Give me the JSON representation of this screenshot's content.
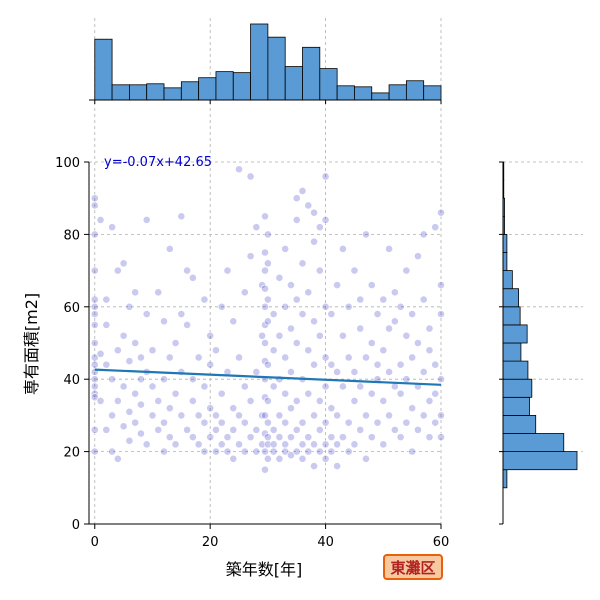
{
  "chart_data": {
    "type": "scatter",
    "xlabel": "築年数[年]",
    "ylabel": "専有面積[m2]",
    "xlim": [
      -1,
      60
    ],
    "ylim": [
      0,
      100
    ],
    "xticks": [
      0,
      20,
      40,
      60
    ],
    "yticks": [
      0,
      20,
      40,
      60,
      80,
      100
    ],
    "grid": true,
    "regression": {
      "slope": -0.07,
      "intercept": 42.65,
      "label": "y=-0.07x+42.65",
      "color": "#1f77b4"
    },
    "badge": "東灘区",
    "point_color": "#4040c8",
    "hist_color": "#5b9bd5",
    "x_hist": {
      "bins": [
        0,
        3,
        6,
        9,
        12,
        15,
        18,
        21,
        24,
        27,
        30,
        33,
        36,
        39,
        42,
        45,
        48,
        51,
        54,
        57,
        60
      ],
      "counts": [
        60,
        15,
        15,
        16,
        12,
        18,
        22,
        28,
        27,
        75,
        62,
        33,
        52,
        31,
        14,
        13,
        7,
        15,
        19,
        14
      ]
    },
    "y_hist": {
      "bins": [
        10,
        15,
        20,
        25,
        30,
        35,
        40,
        45,
        50,
        55,
        60,
        65,
        70,
        75,
        80,
        85,
        90,
        95,
        100
      ],
      "counts": [
        5,
        95,
        78,
        42,
        34,
        37,
        32,
        23,
        31,
        22,
        20,
        12,
        5,
        5,
        2,
        2,
        1,
        1
      ]
    },
    "points": [
      [
        0,
        90
      ],
      [
        0,
        88
      ],
      [
        0,
        60
      ],
      [
        0,
        55
      ],
      [
        0,
        50
      ],
      [
        0,
        46
      ],
      [
        0,
        42
      ],
      [
        0,
        40
      ],
      [
        0,
        38
      ],
      [
        0,
        36
      ],
      [
        0,
        35
      ],
      [
        0,
        26
      ],
      [
        0,
        20
      ],
      [
        0,
        80
      ],
      [
        0,
        70
      ],
      [
        0,
        58
      ],
      [
        0,
        62
      ],
      [
        0,
        44
      ],
      [
        1,
        34
      ],
      [
        1,
        47
      ],
      [
        1,
        84
      ],
      [
        2,
        26
      ],
      [
        2,
        44
      ],
      [
        2,
        55
      ],
      [
        2,
        62
      ],
      [
        3,
        40
      ],
      [
        3,
        30
      ],
      [
        3,
        20
      ],
      [
        3,
        82
      ],
      [
        4,
        48
      ],
      [
        4,
        34
      ],
      [
        4,
        18
      ],
      [
        4,
        70
      ],
      [
        5,
        38
      ],
      [
        5,
        52
      ],
      [
        5,
        27
      ],
      [
        5,
        72
      ],
      [
        6,
        60
      ],
      [
        6,
        45
      ],
      [
        6,
        31
      ],
      [
        6,
        23
      ],
      [
        7,
        50
      ],
      [
        7,
        36
      ],
      [
        7,
        28
      ],
      [
        7,
        64
      ],
      [
        8,
        46
      ],
      [
        8,
        40
      ],
      [
        8,
        33
      ],
      [
        8,
        25
      ],
      [
        9,
        58
      ],
      [
        9,
        42
      ],
      [
        9,
        22
      ],
      [
        9,
        84
      ],
      [
        10,
        38
      ],
      [
        10,
        30
      ],
      [
        10,
        48
      ],
      [
        11,
        26
      ],
      [
        11,
        64
      ],
      [
        11,
        34
      ],
      [
        12,
        56
      ],
      [
        12,
        40
      ],
      [
        12,
        28
      ],
      [
        12,
        20
      ],
      [
        13,
        46
      ],
      [
        13,
        32
      ],
      [
        13,
        24
      ],
      [
        13,
        76
      ],
      [
        14,
        50
      ],
      [
        14,
        36
      ],
      [
        14,
        22
      ],
      [
        15,
        42
      ],
      [
        15,
        30
      ],
      [
        15,
        85
      ],
      [
        15,
        58
      ],
      [
        16,
        26
      ],
      [
        16,
        55
      ],
      [
        16,
        70
      ],
      [
        17,
        40
      ],
      [
        17,
        34
      ],
      [
        17,
        24
      ],
      [
        17,
        68
      ],
      [
        18,
        30
      ],
      [
        18,
        22
      ],
      [
        18,
        46
      ],
      [
        19,
        28
      ],
      [
        19,
        20
      ],
      [
        19,
        38
      ],
      [
        19,
        62
      ],
      [
        20,
        24
      ],
      [
        20,
        32
      ],
      [
        20,
        44
      ],
      [
        20,
        52
      ],
      [
        21,
        20
      ],
      [
        21,
        26
      ],
      [
        21,
        30
      ],
      [
        21,
        48
      ],
      [
        22,
        22
      ],
      [
        22,
        28
      ],
      [
        22,
        36
      ],
      [
        22,
        60
      ],
      [
        23,
        20
      ],
      [
        23,
        24
      ],
      [
        23,
        42
      ],
      [
        23,
        70
      ],
      [
        24,
        18
      ],
      [
        24,
        26
      ],
      [
        24,
        32
      ],
      [
        24,
        56
      ],
      [
        25,
        22
      ],
      [
        25,
        30
      ],
      [
        25,
        46
      ],
      [
        25,
        98
      ],
      [
        26,
        20
      ],
      [
        26,
        28
      ],
      [
        26,
        38
      ],
      [
        26,
        64
      ],
      [
        27,
        24
      ],
      [
        27,
        34
      ],
      [
        27,
        74
      ],
      [
        27,
        96
      ],
      [
        28,
        20
      ],
      [
        28,
        26
      ],
      [
        28,
        42
      ],
      [
        28,
        82
      ],
      [
        29,
        22
      ],
      [
        29,
        30
      ],
      [
        29,
        52
      ],
      [
        29,
        66
      ],
      [
        29.5,
        15
      ],
      [
        29.5,
        20
      ],
      [
        29.5,
        25
      ],
      [
        29.5,
        30
      ],
      [
        29.5,
        35
      ],
      [
        29.5,
        40
      ],
      [
        29.5,
        45
      ],
      [
        29.5,
        50
      ],
      [
        29.5,
        55
      ],
      [
        29.5,
        60
      ],
      [
        29.5,
        65
      ],
      [
        29.5,
        70
      ],
      [
        29.5,
        75
      ],
      [
        29.5,
        85
      ],
      [
        30,
        18
      ],
      [
        30,
        22
      ],
      [
        30,
        24
      ],
      [
        30,
        28
      ],
      [
        30,
        34
      ],
      [
        30,
        44
      ],
      [
        30,
        56
      ],
      [
        30,
        62
      ],
      [
        30,
        72
      ],
      [
        30,
        80
      ],
      [
        31,
        20
      ],
      [
        31,
        22
      ],
      [
        31,
        26
      ],
      [
        31,
        38
      ],
      [
        31,
        48
      ],
      [
        31,
        58
      ],
      [
        32,
        18
      ],
      [
        32,
        24
      ],
      [
        32,
        30
      ],
      [
        32,
        40
      ],
      [
        32,
        52
      ],
      [
        32,
        68
      ],
      [
        33,
        20
      ],
      [
        33,
        22
      ],
      [
        33,
        28
      ],
      [
        33,
        36
      ],
      [
        33,
        46
      ],
      [
        33,
        60
      ],
      [
        33,
        76
      ],
      [
        34,
        19
      ],
      [
        34,
        24
      ],
      [
        34,
        32
      ],
      [
        34,
        42
      ],
      [
        34,
        54
      ],
      [
        34,
        66
      ],
      [
        35,
        20
      ],
      [
        35,
        26
      ],
      [
        35,
        34
      ],
      [
        35,
        50
      ],
      [
        35,
        62
      ],
      [
        35,
        84
      ],
      [
        35,
        90
      ],
      [
        36,
        18
      ],
      [
        36,
        22
      ],
      [
        36,
        28
      ],
      [
        36,
        40
      ],
      [
        36,
        58
      ],
      [
        36,
        72
      ],
      [
        36,
        92
      ],
      [
        37,
        20
      ],
      [
        37,
        24
      ],
      [
        37,
        36
      ],
      [
        37,
        48
      ],
      [
        37,
        64
      ],
      [
        37,
        88
      ],
      [
        38,
        16
      ],
      [
        38,
        22
      ],
      [
        38,
        30
      ],
      [
        38,
        44
      ],
      [
        38,
        56
      ],
      [
        38,
        78
      ],
      [
        38,
        86
      ],
      [
        39,
        20
      ],
      [
        39,
        26
      ],
      [
        39,
        34
      ],
      [
        39,
        52
      ],
      [
        39,
        70
      ],
      [
        39,
        82
      ],
      [
        40,
        18
      ],
      [
        40,
        22
      ],
      [
        40,
        28
      ],
      [
        40,
        38
      ],
      [
        40,
        46
      ],
      [
        40,
        60
      ],
      [
        40,
        84
      ],
      [
        40,
        96
      ],
      [
        41,
        20
      ],
      [
        41,
        24
      ],
      [
        41,
        32
      ],
      [
        41,
        44
      ],
      [
        41,
        58
      ],
      [
        42,
        16
      ],
      [
        42,
        22
      ],
      [
        42,
        30
      ],
      [
        42,
        42
      ],
      [
        42,
        66
      ],
      [
        43,
        24
      ],
      [
        43,
        38
      ],
      [
        43,
        52
      ],
      [
        43,
        76
      ],
      [
        44,
        20
      ],
      [
        44,
        28
      ],
      [
        44,
        46
      ],
      [
        44,
        60
      ],
      [
        45,
        22
      ],
      [
        45,
        34
      ],
      [
        45,
        42
      ],
      [
        45,
        70
      ],
      [
        46,
        26
      ],
      [
        46,
        38
      ],
      [
        46,
        54
      ],
      [
        46,
        62
      ],
      [
        47,
        18
      ],
      [
        47,
        30
      ],
      [
        47,
        46
      ],
      [
        47,
        80
      ],
      [
        48,
        24
      ],
      [
        48,
        36
      ],
      [
        48,
        50
      ],
      [
        48,
        66
      ],
      [
        49,
        28
      ],
      [
        49,
        40
      ],
      [
        49,
        58
      ],
      [
        49,
        44
      ],
      [
        50,
        22
      ],
      [
        50,
        34
      ],
      [
        50,
        48
      ],
      [
        50,
        62
      ],
      [
        51,
        30
      ],
      [
        51,
        42
      ],
      [
        51,
        54
      ],
      [
        51,
        76
      ],
      [
        52,
        26
      ],
      [
        52,
        38
      ],
      [
        52,
        56
      ],
      [
        52,
        64
      ],
      [
        53,
        24
      ],
      [
        53,
        36
      ],
      [
        53,
        44
      ],
      [
        53,
        60
      ],
      [
        54,
        28
      ],
      [
        54,
        40
      ],
      [
        54,
        52
      ],
      [
        54,
        70
      ],
      [
        55,
        32
      ],
      [
        55,
        46
      ],
      [
        55,
        58
      ],
      [
        55,
        20
      ],
      [
        56,
        26
      ],
      [
        56,
        38
      ],
      [
        56,
        50
      ],
      [
        56,
        74
      ],
      [
        57,
        30
      ],
      [
        57,
        42
      ],
      [
        57,
        62
      ],
      [
        57,
        80
      ],
      [
        58,
        24
      ],
      [
        58,
        34
      ],
      [
        58,
        48
      ],
      [
        58,
        54
      ],
      [
        59,
        28
      ],
      [
        59,
        36
      ],
      [
        59,
        44
      ],
      [
        59,
        82
      ],
      [
        60,
        24
      ],
      [
        60,
        30
      ],
      [
        60,
        40
      ],
      [
        60,
        58
      ],
      [
        60,
        86
      ],
      [
        60,
        66
      ]
    ]
  }
}
